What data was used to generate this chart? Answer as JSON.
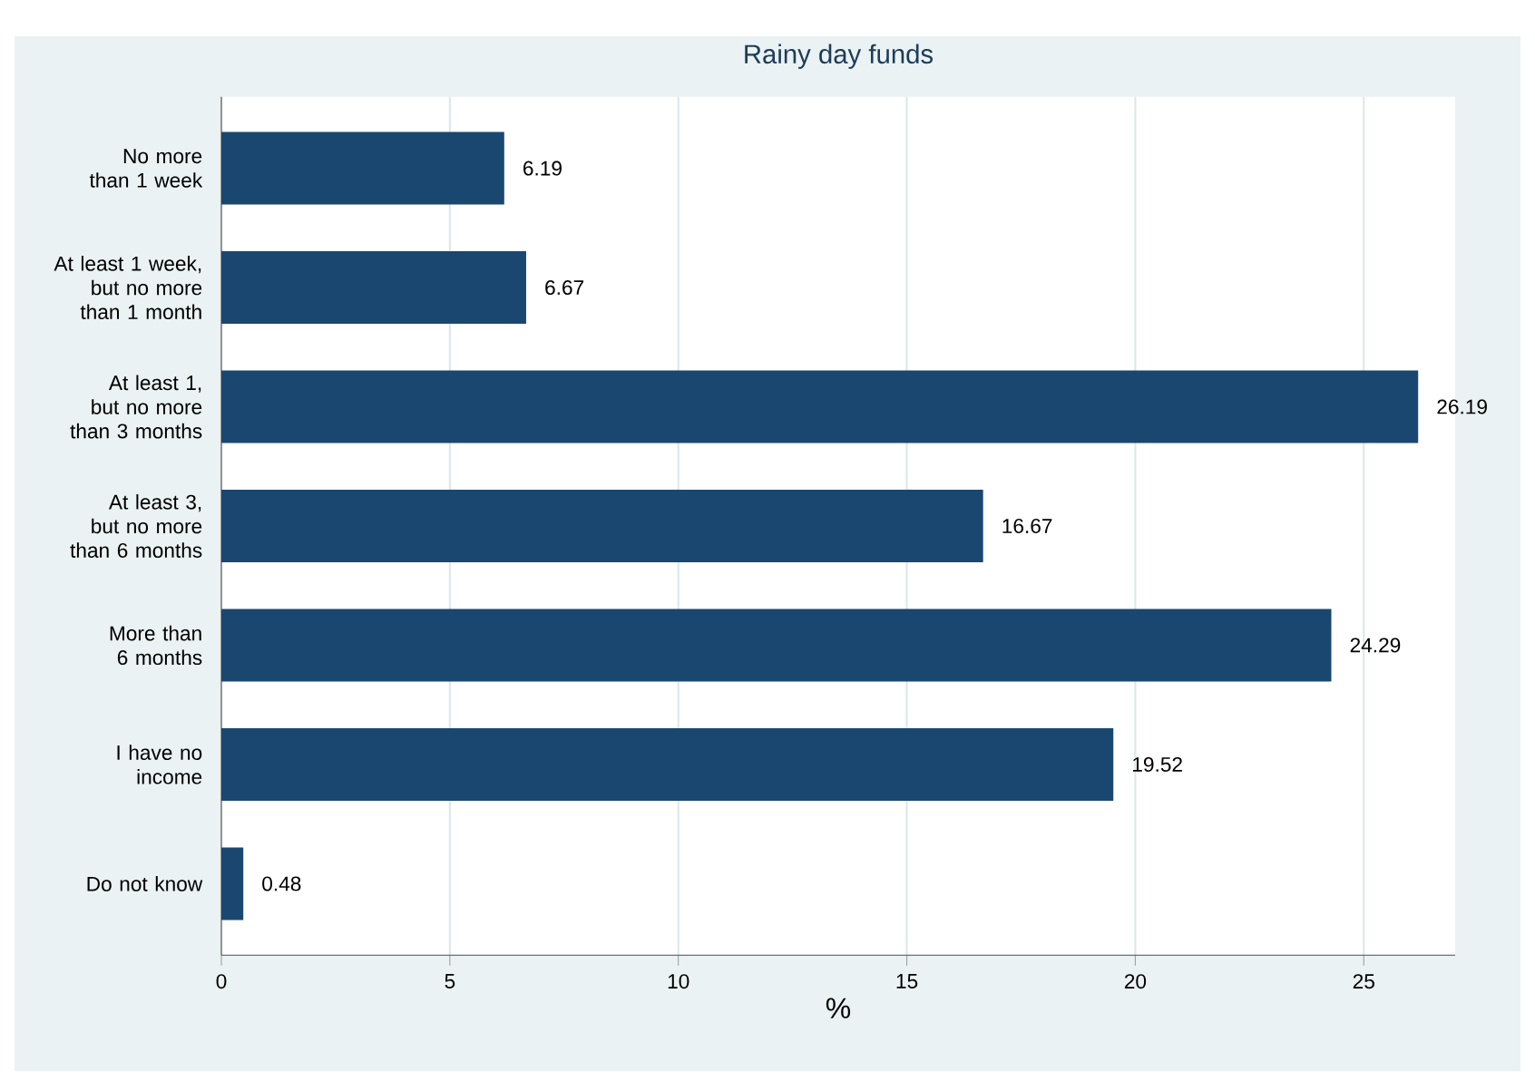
{
  "chart_data": {
    "type": "bar",
    "orientation": "horizontal",
    "title": "Rainy day funds",
    "xlabel": "%",
    "categories": [
      "No more than 1 week",
      "At least 1 week, but no more than 1 month",
      "At least 1, but no more than 3 months",
      "At least 3, but no more than 6 months",
      "More than 6 months",
      "I have no income",
      "Do not know"
    ],
    "values": [
      6.19,
      6.67,
      26.19,
      16.67,
      24.29,
      19.52,
      0.48
    ],
    "value_labels": [
      "6.19",
      "6.67",
      "26.19",
      "16.67",
      "24.29",
      "19.52",
      "0.48"
    ],
    "color": "#1a476f",
    "xlim": [
      0,
      27
    ],
    "xticks": [
      0,
      5,
      10,
      15,
      20,
      25
    ],
    "grid": "x"
  }
}
